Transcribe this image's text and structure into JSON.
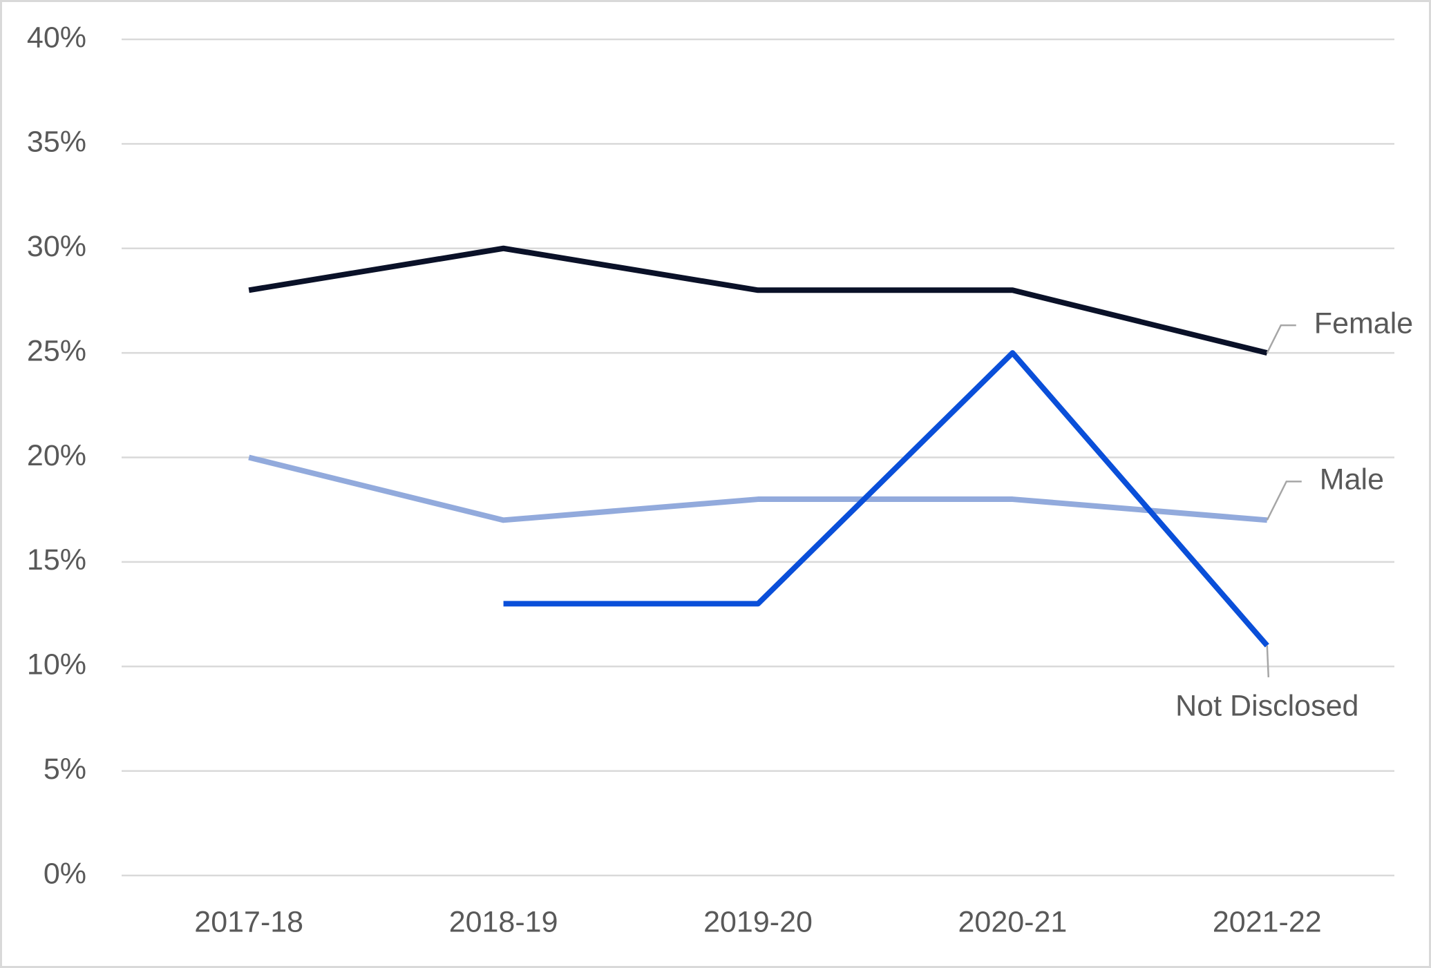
{
  "chart_data": {
    "type": "line",
    "categories": [
      "2017-18",
      "2018-19",
      "2019-20",
      "2020-21",
      "2021-22"
    ],
    "series": [
      {
        "name": "Female",
        "color": "#0a1128",
        "values": [
          28,
          30,
          28,
          28,
          25
        ]
      },
      {
        "name": "Male",
        "color": "#92aadc",
        "values": [
          20,
          17,
          18,
          18,
          17
        ]
      },
      {
        "name": "Not Disclosed",
        "color": "#0a4fd9",
        "values": [
          null,
          13,
          13,
          25,
          11
        ]
      }
    ],
    "ylim": [
      0,
      40
    ],
    "yticks": [
      {
        "value": 0,
        "label": "0%"
      },
      {
        "value": 5,
        "label": "5%"
      },
      {
        "value": 10,
        "label": "10%"
      },
      {
        "value": 15,
        "label": "15%"
      },
      {
        "value": 20,
        "label": "20%"
      },
      {
        "value": 25,
        "label": "25%"
      },
      {
        "value": 30,
        "label": "30%"
      },
      {
        "value": 35,
        "label": "35%"
      },
      {
        "value": 40,
        "label": "40%"
      }
    ],
    "grid": true
  }
}
